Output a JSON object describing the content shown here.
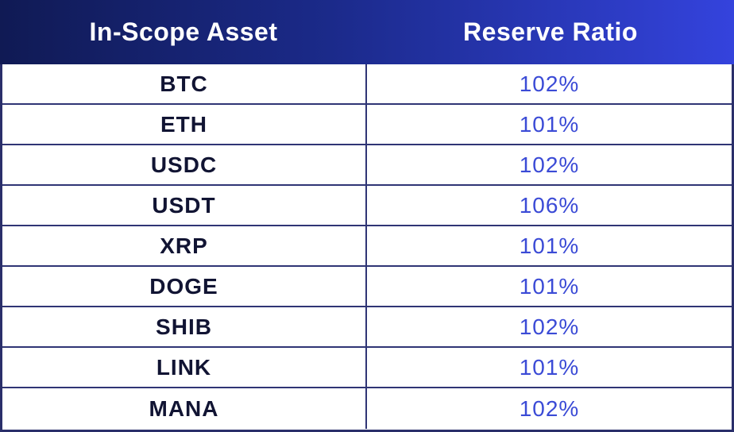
{
  "header": {
    "asset_label": "In-Scope Asset",
    "ratio_label": "Reserve Ratio"
  },
  "rows": [
    {
      "asset": "BTC",
      "ratio": "102%"
    },
    {
      "asset": "ETH",
      "ratio": "101%"
    },
    {
      "asset": "USDC",
      "ratio": "102%"
    },
    {
      "asset": "USDT",
      "ratio": "106%"
    },
    {
      "asset": "XRP",
      "ratio": "101%"
    },
    {
      "asset": "DOGE",
      "ratio": "101%"
    },
    {
      "asset": "SHIB",
      "ratio": "102%"
    },
    {
      "asset": "LINK",
      "ratio": "101%"
    },
    {
      "asset": "MANA",
      "ratio": "102%"
    }
  ],
  "colors": {
    "header_gradient_start": "#101a54",
    "header_gradient_end": "#3443dd",
    "ratio_text": "#3b4bd6",
    "asset_text": "#111433",
    "grid_lines": "#2f3575"
  }
}
